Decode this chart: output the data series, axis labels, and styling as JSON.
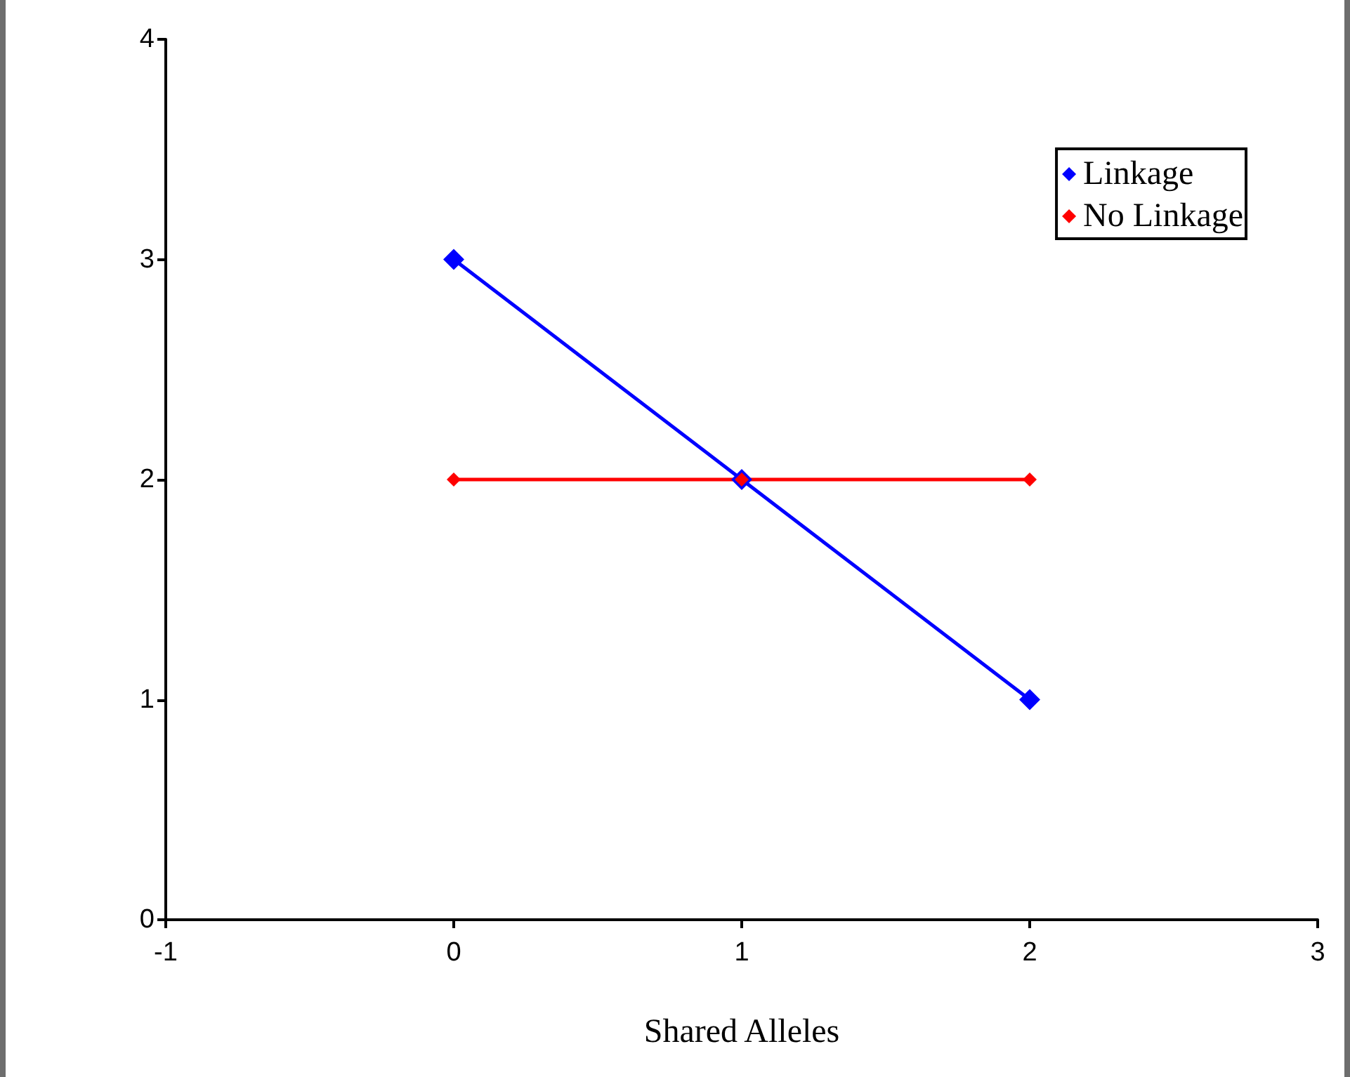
{
  "chart_data": {
    "type": "line",
    "xlabel": "Shared Alleles",
    "x": [
      0,
      1,
      2
    ],
    "series": [
      {
        "name": "Linkage",
        "color": "#0000ff",
        "values": [
          3,
          2,
          1
        ]
      },
      {
        "name": "No Linkage",
        "color": "#ff0000",
        "values": [
          2,
          2,
          2
        ]
      }
    ],
    "xlim": [
      -1,
      3
    ],
    "xticks": [
      -1,
      0,
      1,
      2,
      3
    ],
    "ylim": [
      0,
      4
    ],
    "yticks": [
      0,
      1,
      2,
      3,
      4
    ],
    "grid": false,
    "legend": "top right",
    "marker": "diamond",
    "line_style": "solid"
  }
}
